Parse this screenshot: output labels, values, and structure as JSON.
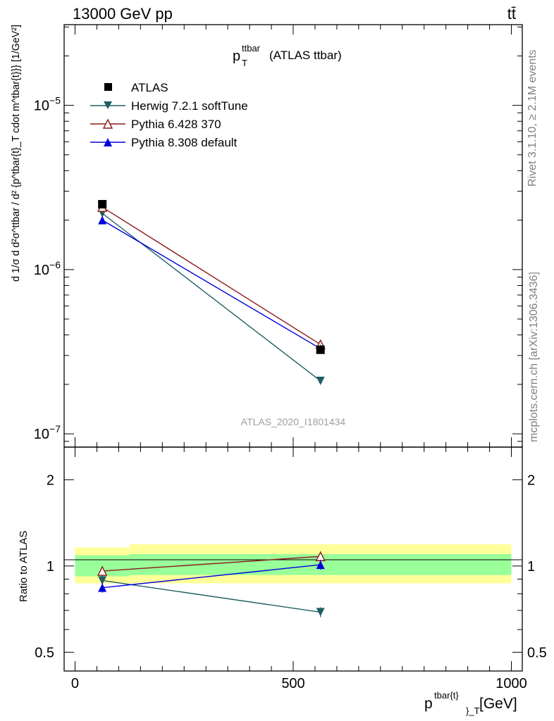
{
  "header": {
    "left": "13000 GeV pp",
    "right": "tt̄"
  },
  "side_labels": {
    "rivet": "Rivet 3.1.10, ≥ 2.1M events",
    "mcplots": "mcplots.cern.ch [arXiv:1306.3436]"
  },
  "watermark": "ATLAS_2020_I1801434",
  "main_title": {
    "base": "p",
    "sup": "ttbar",
    "sub": "T",
    "rest": "(ATLAS ttbar)"
  },
  "ylabel_main": "d 1/σ d d²σ^ttbar / d² {p^tbar{t}_T cdot m^tbar{t}}} [1/GeV²]",
  "ylabel_ratio": "Ratio to ATLAS",
  "xlabel": {
    "base": "p",
    "sup": "tbar{t}",
    "sub": "}_T",
    "rest": "[GeV]"
  },
  "legend": [
    {
      "label": "ATLAS",
      "marker": "square",
      "color": "#000000"
    },
    {
      "label": "Herwig 7.2.1 softTune",
      "marker": "triangle-down",
      "color": "#1f5f63"
    },
    {
      "label": "Pythia 6.428 370",
      "marker": "triangle-open",
      "color": "#8b1a1a"
    },
    {
      "label": "Pythia 8.308 default",
      "marker": "triangle-up",
      "color": "#0000dd"
    }
  ],
  "y_tick_labels": [
    "10−5",
    "10−6",
    "10−7"
  ],
  "ratio_tick_labels": [
    "0.5",
    "1",
    "2"
  ],
  "x_tick_labels": [
    "0",
    "500",
    "1000"
  ],
  "chart_data": {
    "type": "line",
    "x_scale": "linear",
    "xlim": [
      -25,
      1025
    ],
    "main": {
      "y_scale": "log",
      "ylim": [
        8.3e-08,
        3.1e-05
      ],
      "x": [
        62.5,
        562.5
      ],
      "series": [
        {
          "name": "ATLAS",
          "values": [
            2.5e-06,
            3.25e-07
          ]
        },
        {
          "name": "Herwig 7.2.1 softTune",
          "values": [
            2.2e-06,
            2.1e-07
          ]
        },
        {
          "name": "Pythia 6.428 370",
          "values": [
            2.4e-06,
            3.5e-07
          ]
        },
        {
          "name": "Pythia 8.308 default",
          "values": [
            2e-06,
            3.3e-07
          ]
        }
      ]
    },
    "ratio": {
      "y_scale": "log",
      "ylim": [
        0.43,
        2.6
      ],
      "x": [
        62.5,
        562.5
      ],
      "series": [
        {
          "name": "Herwig 7.2.1 softTune",
          "values": [
            0.89,
            0.69
          ]
        },
        {
          "name": "Pythia 6.428 370",
          "values": [
            0.96,
            1.08
          ]
        },
        {
          "name": "Pythia 8.308 default",
          "values": [
            0.84,
            1.01
          ]
        }
      ],
      "bands": {
        "inner": [
          {
            "x": [
              0,
              125
            ],
            "lo": 0.92,
            "hi": 1.09
          },
          {
            "x": [
              125,
              1000
            ],
            "lo": 0.93,
            "hi": 1.1
          }
        ],
        "outer": [
          {
            "x": [
              0,
              125
            ],
            "lo": 0.87,
            "hi": 1.16
          },
          {
            "x": [
              125,
              1000
            ],
            "lo": 0.87,
            "hi": 1.19
          }
        ]
      }
    }
  }
}
